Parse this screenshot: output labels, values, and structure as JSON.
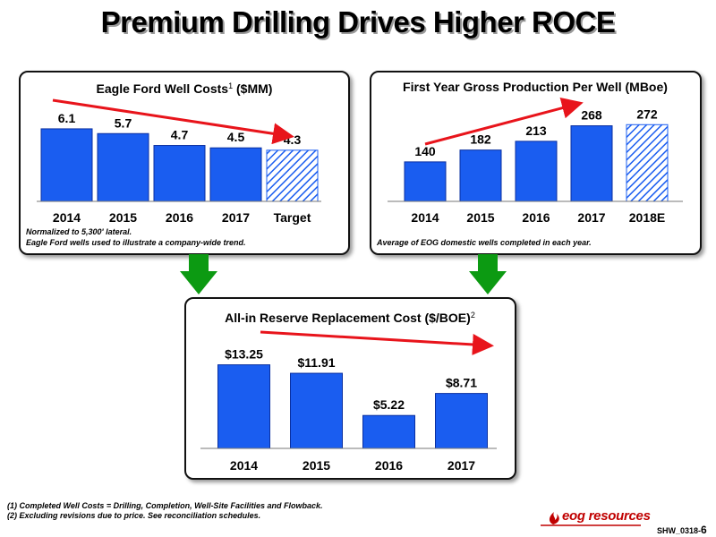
{
  "page": {
    "title": "Premium Drilling Drives Higher ROCE",
    "footnote1": "(1)   Completed Well Costs = Drilling, Completion, Well-Site Facilities and Flowback.",
    "footnote2": "(2)   Excluding revisions due to price. See reconciliation schedules.",
    "logo_text": "eog resources",
    "slide_code": "SHW_0318-",
    "slide_number": "6"
  },
  "colors": {
    "bar": "#1a5df0",
    "bar_stroke": "#0a2fa0",
    "hatch": "#1a5df0",
    "trend_arrow": "#e8141b",
    "down_arrow": "#0c9a12",
    "logo": "#c00000"
  },
  "chart_data": [
    {
      "type": "bar",
      "title": "Eagle Ford Well Costs",
      "title_sup": "1",
      "title_suffix": " ($MM)",
      "categories": [
        "2014",
        "2015",
        "2016",
        "2017",
        "Target"
      ],
      "values": [
        6.1,
        5.7,
        4.7,
        4.5,
        4.3
      ],
      "labels": [
        "6.1",
        "5.7",
        "4.7",
        "4.5",
        "4.3"
      ],
      "hatched": [
        false,
        false,
        false,
        false,
        true
      ],
      "ylim": [
        0,
        7.6
      ],
      "trend": "down",
      "notes": [
        "Normalized to 5,300' lateral.",
        "Eagle Ford wells used to illustrate a company-wide trend."
      ]
    },
    {
      "type": "bar",
      "title": "First Year Gross Production Per Well (MBoe)",
      "title_sup": "",
      "title_suffix": "",
      "categories": [
        "2014",
        "2015",
        "2016",
        "2017",
        "2018E"
      ],
      "values": [
        140,
        182,
        213,
        268,
        272
      ],
      "labels": [
        "140",
        "182",
        "213",
        "268",
        "272"
      ],
      "hatched": [
        false,
        false,
        false,
        false,
        true
      ],
      "ylim": [
        0,
        330
      ],
      "trend": "up",
      "notes": [
        "Average of EOG domestic wells completed in each year."
      ]
    },
    {
      "type": "bar",
      "title": "All-in Reserve Replacement Cost ($/BOE)",
      "title_sup": "2",
      "title_suffix": "",
      "categories": [
        "2014",
        "2015",
        "2016",
        "2017"
      ],
      "values": [
        13.25,
        11.91,
        5.22,
        8.71
      ],
      "labels": [
        "$13.25",
        "$11.91",
        "$5.22",
        "$8.71"
      ],
      "hatched": [
        false,
        false,
        false,
        false
      ],
      "ylim": [
        0,
        16.6
      ],
      "trend": "down",
      "notes": []
    }
  ]
}
